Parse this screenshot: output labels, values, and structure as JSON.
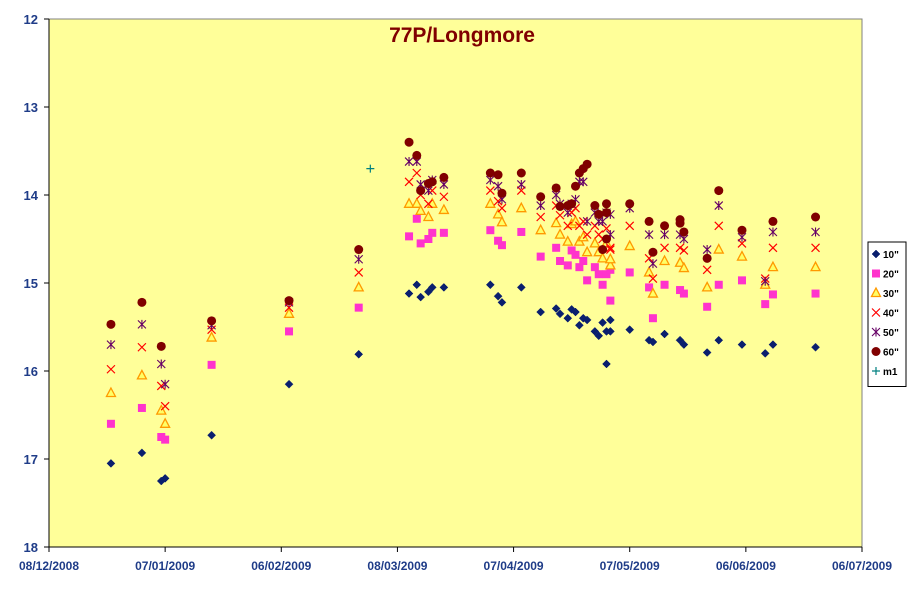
{
  "chart_data": {
    "type": "scatter",
    "title": "77P/Longmore",
    "xlabel": "",
    "ylabel": "",
    "x_axis": {
      "type": "date",
      "min": "2008-12-08",
      "max": "2009-07-06",
      "ticks": [
        "08/12/2008",
        "07/01/2009",
        "06/02/2009",
        "08/03/2009",
        "07/04/2009",
        "07/05/2009",
        "06/06/2009",
        "06/07/2009"
      ]
    },
    "y_axis": {
      "min": 12,
      "max": 18,
      "reversed": true,
      "ticks": [
        "12",
        "13",
        "14",
        "15",
        "16",
        "17",
        "18"
      ]
    },
    "grid": false,
    "legend_position": "right",
    "colors": {
      "plot_background": "#ffff99",
      "outer_background": "#ffffff",
      "axis": "#000000",
      "tick_text": "#1f3c88",
      "title": "#800000"
    },
    "series": [
      {
        "name": "10\"",
        "marker": "diamond",
        "color": "#0a1f6e",
        "x": [
          "2008-12-24",
          "2009-01-01",
          "2009-01-06",
          "2009-01-07",
          "2009-01-19",
          "2009-02-08",
          "2009-02-26",
          "2009-03-11",
          "2009-03-13",
          "2009-03-14",
          "2009-03-16",
          "2009-03-17",
          "2009-03-20",
          "2009-04-01",
          "2009-04-03",
          "2009-04-04",
          "2009-04-09",
          "2009-04-14",
          "2009-04-18",
          "2009-04-19",
          "2009-04-21",
          "2009-04-22",
          "2009-04-23",
          "2009-04-24",
          "2009-04-25",
          "2009-04-26",
          "2009-04-28",
          "2009-04-29",
          "2009-04-30",
          "2009-05-01",
          "2009-05-01",
          "2009-05-02",
          "2009-05-02",
          "2009-05-07",
          "2009-05-12",
          "2009-05-13",
          "2009-05-16",
          "2009-05-20",
          "2009-05-21",
          "2009-05-27",
          "2009-05-30",
          "2009-06-05",
          "2009-06-11",
          "2009-06-13",
          "2009-06-24"
        ],
        "y": [
          17.05,
          16.93,
          17.25,
          17.22,
          16.73,
          16.15,
          15.81,
          15.12,
          15.02,
          15.16,
          15.1,
          15.05,
          15.05,
          15.02,
          15.15,
          15.22,
          15.05,
          15.33,
          15.29,
          15.35,
          15.4,
          15.3,
          15.33,
          15.48,
          15.4,
          15.42,
          15.55,
          15.6,
          15.45,
          15.55,
          15.92,
          15.55,
          15.42,
          15.53,
          15.65,
          15.67,
          15.58,
          15.65,
          15.7,
          15.79,
          15.65,
          15.7,
          15.8,
          15.7,
          15.73
        ]
      },
      {
        "name": "20\"",
        "marker": "square",
        "color": "#ff33cc",
        "x": [
          "2008-12-24",
          "2009-01-01",
          "2009-01-06",
          "2009-01-07",
          "2009-01-19",
          "2009-02-08",
          "2009-02-26",
          "2009-03-11",
          "2009-03-13",
          "2009-03-14",
          "2009-03-16",
          "2009-03-17",
          "2009-03-20",
          "2009-04-01",
          "2009-04-03",
          "2009-04-04",
          "2009-04-09",
          "2009-04-14",
          "2009-04-18",
          "2009-04-19",
          "2009-04-21",
          "2009-04-22",
          "2009-04-23",
          "2009-04-24",
          "2009-04-25",
          "2009-04-26",
          "2009-04-28",
          "2009-04-29",
          "2009-04-30",
          "2009-05-01",
          "2009-05-02",
          "2009-05-02",
          "2009-05-07",
          "2009-05-12",
          "2009-05-13",
          "2009-05-16",
          "2009-05-20",
          "2009-05-21",
          "2009-05-27",
          "2009-05-30",
          "2009-06-05",
          "2009-06-11",
          "2009-06-13",
          "2009-06-24"
        ],
        "y": [
          16.6,
          16.42,
          16.75,
          16.78,
          15.93,
          15.55,
          15.28,
          14.47,
          14.27,
          14.55,
          14.5,
          14.43,
          14.43,
          14.4,
          14.52,
          14.57,
          14.42,
          14.7,
          14.6,
          14.75,
          14.8,
          14.63,
          14.68,
          14.82,
          14.75,
          14.97,
          14.82,
          14.9,
          15.02,
          14.9,
          15.2,
          14.85,
          14.88,
          15.05,
          15.4,
          15.02,
          15.08,
          15.12,
          15.27,
          15.02,
          14.97,
          15.24,
          15.13,
          15.12
        ]
      },
      {
        "name": "30\"",
        "marker": "triangle",
        "color": "#ff9900",
        "x": [
          "2008-12-24",
          "2009-01-01",
          "2009-01-06",
          "2009-01-07",
          "2009-01-19",
          "2009-02-08",
          "2009-02-26",
          "2009-03-11",
          "2009-03-13",
          "2009-03-14",
          "2009-03-16",
          "2009-03-17",
          "2009-03-20",
          "2009-04-01",
          "2009-04-03",
          "2009-04-04",
          "2009-04-09",
          "2009-04-14",
          "2009-04-18",
          "2009-04-19",
          "2009-04-21",
          "2009-04-22",
          "2009-04-23",
          "2009-04-24",
          "2009-04-25",
          "2009-04-26",
          "2009-04-28",
          "2009-04-29",
          "2009-04-30",
          "2009-05-01",
          "2009-05-02",
          "2009-05-02",
          "2009-05-07",
          "2009-05-12",
          "2009-05-13",
          "2009-05-16",
          "2009-05-20",
          "2009-05-21",
          "2009-05-27",
          "2009-05-30",
          "2009-06-05",
          "2009-06-11",
          "2009-06-13",
          "2009-06-24"
        ],
        "y": [
          16.25,
          16.05,
          16.45,
          16.6,
          15.62,
          15.35,
          15.05,
          14.1,
          14.1,
          14.18,
          14.25,
          14.1,
          14.17,
          14.1,
          14.22,
          14.31,
          14.15,
          14.4,
          14.32,
          14.45,
          14.53,
          14.33,
          14.3,
          14.53,
          14.48,
          14.65,
          14.55,
          14.65,
          14.72,
          14.55,
          14.8,
          14.73,
          14.58,
          14.88,
          15.12,
          14.75,
          14.77,
          14.83,
          15.05,
          14.62,
          14.7,
          15.02,
          14.82,
          14.82
        ]
      },
      {
        "name": "40\"",
        "marker": "x",
        "color": "#ff0000",
        "x": [
          "2008-12-24",
          "2009-01-01",
          "2009-01-06",
          "2009-01-07",
          "2009-01-19",
          "2009-02-08",
          "2009-02-26",
          "2009-03-11",
          "2009-03-13",
          "2009-03-14",
          "2009-03-16",
          "2009-03-17",
          "2009-03-20",
          "2009-04-01",
          "2009-04-03",
          "2009-04-04",
          "2009-04-09",
          "2009-04-14",
          "2009-04-18",
          "2009-04-19",
          "2009-04-21",
          "2009-04-22",
          "2009-04-23",
          "2009-04-24",
          "2009-04-25",
          "2009-04-26",
          "2009-04-28",
          "2009-04-29",
          "2009-04-30",
          "2009-05-01",
          "2009-05-02",
          "2009-05-02",
          "2009-05-07",
          "2009-05-12",
          "2009-05-13",
          "2009-05-16",
          "2009-05-20",
          "2009-05-21",
          "2009-05-27",
          "2009-05-30",
          "2009-06-05",
          "2009-06-11",
          "2009-06-13",
          "2009-06-24"
        ],
        "y": [
          15.98,
          15.73,
          16.17,
          16.4,
          15.53,
          15.28,
          14.88,
          13.85,
          13.75,
          14.0,
          14.1,
          13.95,
          14.02,
          13.95,
          14.07,
          14.15,
          13.95,
          14.25,
          14.12,
          14.23,
          14.35,
          14.2,
          14.15,
          14.35,
          14.3,
          14.45,
          14.35,
          14.45,
          14.5,
          14.38,
          14.6,
          14.62,
          14.35,
          14.72,
          14.95,
          14.6,
          14.6,
          14.63,
          14.85,
          14.35,
          14.55,
          14.95,
          14.6,
          14.6
        ]
      },
      {
        "name": "50\"",
        "marker": "star",
        "color": "#660066",
        "x": [
          "2008-12-24",
          "2009-01-01",
          "2009-01-06",
          "2009-01-07",
          "2009-01-19",
          "2009-02-08",
          "2009-02-26",
          "2009-03-11",
          "2009-03-13",
          "2009-03-14",
          "2009-03-16",
          "2009-03-17",
          "2009-03-20",
          "2009-04-01",
          "2009-04-03",
          "2009-04-04",
          "2009-04-09",
          "2009-04-14",
          "2009-04-18",
          "2009-04-19",
          "2009-04-21",
          "2009-04-22",
          "2009-04-23",
          "2009-04-24",
          "2009-04-25",
          "2009-04-26",
          "2009-04-28",
          "2009-04-29",
          "2009-04-30",
          "2009-05-01",
          "2009-05-02",
          "2009-05-02",
          "2009-05-07",
          "2009-05-12",
          "2009-05-13",
          "2009-05-16",
          "2009-05-20",
          "2009-05-21",
          "2009-05-27",
          "2009-05-30",
          "2009-06-05",
          "2009-06-11",
          "2009-06-13",
          "2009-06-24"
        ],
        "y": [
          15.7,
          15.47,
          15.92,
          16.15,
          15.48,
          15.22,
          14.73,
          13.62,
          13.62,
          13.88,
          13.95,
          13.83,
          13.88,
          13.83,
          13.9,
          14.05,
          13.88,
          14.12,
          14.0,
          14.1,
          14.2,
          14.1,
          14.05,
          13.85,
          13.85,
          14.3,
          14.2,
          14.3,
          14.3,
          14.2,
          14.22,
          14.45,
          14.15,
          14.45,
          14.78,
          14.45,
          14.45,
          14.5,
          14.62,
          14.12,
          14.48,
          14.98,
          14.42,
          14.42
        ]
      },
      {
        "name": "60\"",
        "marker": "circle",
        "color": "#800000",
        "x": [
          "2008-12-24",
          "2009-01-01",
          "2009-01-06",
          "2009-01-19",
          "2009-02-08",
          "2009-02-26",
          "2009-03-11",
          "2009-03-13",
          "2009-03-14",
          "2009-03-16",
          "2009-03-17",
          "2009-03-20",
          "2009-04-01",
          "2009-04-03",
          "2009-04-04",
          "2009-04-09",
          "2009-04-14",
          "2009-04-18",
          "2009-04-19",
          "2009-04-21",
          "2009-04-22",
          "2009-04-23",
          "2009-04-24",
          "2009-04-25",
          "2009-04-26",
          "2009-04-28",
          "2009-04-29",
          "2009-04-30",
          "2009-05-01",
          "2009-05-01",
          "2009-05-01",
          "2009-05-07",
          "2009-05-12",
          "2009-05-13",
          "2009-05-16",
          "2009-05-20",
          "2009-05-20",
          "2009-05-21",
          "2009-05-27",
          "2009-05-30",
          "2009-06-05",
          "2009-06-13",
          "2009-06-24"
        ],
        "y": [
          15.47,
          15.22,
          15.72,
          15.43,
          15.2,
          14.62,
          13.4,
          13.55,
          13.95,
          13.87,
          13.85,
          13.8,
          13.75,
          13.77,
          13.98,
          13.75,
          14.02,
          13.92,
          14.13,
          14.12,
          14.1,
          13.9,
          13.75,
          13.7,
          13.65,
          14.12,
          14.22,
          14.62,
          14.1,
          14.2,
          14.5,
          14.1,
          14.3,
          14.65,
          14.35,
          14.28,
          14.32,
          14.42,
          14.72,
          13.95,
          14.4,
          14.3,
          14.25
        ]
      },
      {
        "name": "m1",
        "marker": "plus",
        "color": "#008080",
        "x": [
          "2009-02-29"
        ],
        "y": [
          13.7
        ]
      }
    ]
  }
}
